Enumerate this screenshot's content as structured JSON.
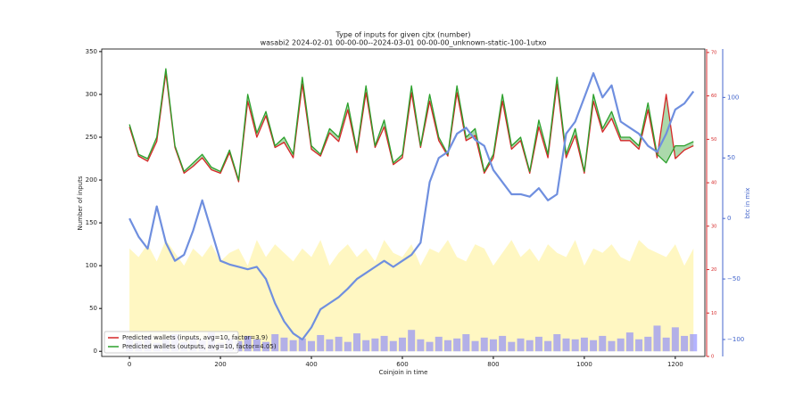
{
  "chart_data": {
    "type": "line",
    "title": "Type of inputs for given cjtx (number)",
    "subtitle": "wasabi2 2024-02-01 00-00-00--2024-03-01 00-00-00_unknown-static-100-1utxo",
    "xlabel": "Coinjoin in time",
    "ylabel": "Number of inputs",
    "y3label": "btc in mix",
    "x": [
      0,
      20,
      40,
      60,
      80,
      100,
      120,
      140,
      160,
      180,
      200,
      220,
      240,
      260,
      280,
      300,
      320,
      340,
      360,
      380,
      400,
      420,
      440,
      460,
      480,
      500,
      520,
      540,
      560,
      580,
      600,
      620,
      640,
      660,
      680,
      700,
      720,
      740,
      760,
      780,
      800,
      820,
      840,
      860,
      880,
      900,
      920,
      940,
      960,
      980,
      1000,
      1020,
      1040,
      1060,
      1080,
      1100,
      1120,
      1140,
      1160,
      1180,
      1200,
      1220,
      1240
    ],
    "xlim": [
      -61,
      1265
    ],
    "xticks": [
      0,
      200,
      400,
      600,
      800,
      1000,
      1200
    ],
    "ylim": [
      -6,
      353
    ],
    "yticks": [
      0,
      50,
      100,
      150,
      200,
      250,
      300,
      350
    ],
    "y2lim": [
      0,
      70.8
    ],
    "y2ticks": [
      0,
      10,
      20,
      30,
      40,
      50,
      60,
      70
    ],
    "y2color": "#d62728",
    "y3lim": [
      -114,
      140
    ],
    "y3ticks": [
      {
        "value": -100,
        "label": "−100"
      },
      {
        "value": -50,
        "label": "−50"
      },
      0,
      50,
      100
    ],
    "y3color": "#4466cc",
    "fill_between": {
      "color": "#2ca02c"
    },
    "legend": "lower left",
    "series": [
      {
        "kind": "area",
        "color": "#fff3a8",
        "values": [
          120,
          110,
          125,
          105,
          130,
          115,
          100,
          120,
          110,
          125,
          105,
          115,
          120,
          100,
          130,
          110,
          125,
          115,
          105,
          120,
          110,
          130,
          100,
          115,
          125,
          110,
          120,
          105,
          130,
          115,
          110,
          125,
          100,
          120,
          115,
          130,
          110,
          105,
          125,
          120,
          100,
          115,
          130,
          110,
          120,
          105,
          125,
          115,
          110,
          130,
          100,
          120,
          115,
          125,
          110,
          105,
          130,
          120,
          115,
          110,
          125,
          100,
          120
        ]
      },
      {
        "kind": "bar",
        "color": "#8080ff",
        "values": [
          15,
          12,
          18,
          10,
          14,
          20,
          11,
          16,
          13,
          22,
          10,
          15,
          12,
          18,
          14,
          11,
          20,
          16,
          13,
          15,
          12,
          19,
          14,
          17,
          11,
          21,
          13,
          15,
          18,
          12,
          16,
          25,
          14,
          11,
          17,
          13,
          15,
          20,
          12,
          16,
          14,
          18,
          11,
          15,
          13,
          17,
          12,
          20,
          15,
          14,
          16,
          13,
          18,
          12,
          15,
          22,
          14,
          17,
          30,
          16,
          28,
          18,
          20
        ]
      },
      {
        "kind": "line",
        "name": "Predicted wallets (inputs, avg=10, factor=3.9)",
        "color": "#d62728",
        "values": [
          262,
          228,
          222,
          245,
          325,
          238,
          208,
          216,
          226,
          212,
          208,
          232,
          198,
          292,
          250,
          275,
          238,
          244,
          226,
          312,
          236,
          228,
          255,
          245,
          282,
          232,
          302,
          238,
          262,
          218,
          226,
          302,
          238,
          292,
          246,
          228,
          302,
          246,
          252,
          208,
          226,
          292,
          236,
          246,
          208,
          262,
          226,
          312,
          226,
          252,
          208,
          292,
          256,
          272,
          246,
          246,
          236,
          282,
          226,
          300,
          225,
          235,
          240
        ]
      },
      {
        "kind": "line",
        "name": "Predicted wallets (outputs, avg=10, factor=4.05)",
        "color": "#2ca02c",
        "values": [
          265,
          230,
          225,
          250,
          330,
          240,
          210,
          220,
          230,
          215,
          210,
          235,
          200,
          300,
          255,
          280,
          240,
          250,
          230,
          320,
          240,
          230,
          260,
          250,
          290,
          235,
          310,
          240,
          270,
          220,
          230,
          310,
          240,
          300,
          250,
          230,
          310,
          250,
          260,
          210,
          230,
          300,
          240,
          250,
          210,
          270,
          230,
          320,
          230,
          260,
          210,
          300,
          260,
          280,
          250,
          250,
          240,
          290,
          230,
          220,
          240,
          240,
          245
        ]
      },
      {
        "kind": "line",
        "axis": "y3",
        "color": "#6f8fdf",
        "values": [
          0,
          -15,
          -25,
          10,
          -20,
          -35,
          -30,
          -10,
          15,
          -10,
          -35,
          -38,
          -40,
          -42,
          -40,
          -50,
          -70,
          -85,
          -95,
          -100,
          -90,
          -75,
          -70,
          -65,
          -58,
          -50,
          -45,
          -40,
          -35,
          -40,
          -35,
          -30,
          -20,
          30,
          50,
          55,
          70,
          75,
          65,
          60,
          40,
          30,
          20,
          20,
          18,
          25,
          15,
          20,
          70,
          80,
          100,
          120,
          100,
          110,
          80,
          75,
          70,
          60,
          55,
          70,
          90,
          95,
          105
        ]
      }
    ]
  }
}
